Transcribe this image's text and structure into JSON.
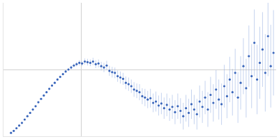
{
  "chart_data": {
    "type": "scatter",
    "x": [
      0.12,
      0.16,
      0.2,
      0.24,
      0.28,
      0.32,
      0.36,
      0.4,
      0.44,
      0.48,
      0.52,
      0.56,
      0.6,
      0.64,
      0.68,
      0.72,
      0.76,
      0.8,
      0.84,
      0.88,
      0.92,
      0.96,
      1.0,
      1.04,
      1.08,
      1.12,
      1.16,
      1.2,
      1.24,
      1.28,
      1.32,
      1.36,
      1.4,
      1.44,
      1.48,
      1.52,
      1.56,
      1.6,
      1.64,
      1.68,
      1.72,
      1.76,
      1.8,
      1.84,
      1.88,
      1.92,
      1.96,
      2.0,
      2.04,
      2.08,
      2.12,
      2.16,
      2.2,
      2.24,
      2.28,
      2.32,
      2.36,
      2.4,
      2.44,
      2.48,
      2.52,
      2.56,
      2.6,
      2.64,
      2.68,
      2.72,
      2.76,
      2.8,
      2.84,
      2.88,
      2.92,
      2.96,
      3.0,
      3.04,
      3.08,
      3.12,
      3.16,
      3.2,
      3.24,
      3.28,
      3.32,
      3.36,
      3.4,
      3.44,
      3.48,
      3.52,
      3.56,
      3.6,
      3.64,
      3.68,
      3.72,
      3.76,
      3.8,
      3.84,
      3.88,
      3.92,
      3.96
    ],
    "values": [
      0.05,
      0.08,
      0.12,
      0.16,
      0.2,
      0.25,
      0.3,
      0.35,
      0.4,
      0.45,
      0.51,
      0.56,
      0.61,
      0.66,
      0.71,
      0.76,
      0.8,
      0.85,
      0.89,
      0.93,
      0.97,
      1.0,
      1.03,
      1.06,
      1.08,
      1.1,
      1.09,
      1.12,
      1.11,
      1.1,
      1.12,
      1.08,
      1.09,
      1.05,
      1.03,
      1.06,
      0.98,
      0.96,
      0.95,
      0.9,
      0.88,
      0.86,
      0.8,
      0.78,
      0.75,
      0.7,
      0.68,
      0.66,
      0.6,
      0.58,
      0.55,
      0.57,
      0.5,
      0.52,
      0.46,
      0.49,
      0.42,
      0.47,
      0.4,
      0.44,
      0.36,
      0.45,
      0.38,
      0.3,
      0.42,
      0.35,
      0.48,
      0.4,
      0.33,
      0.52,
      0.44,
      0.58,
      0.4,
      0.62,
      0.5,
      0.7,
      0.55,
      0.48,
      0.75,
      0.6,
      0.85,
      0.66,
      0.95,
      0.58,
      0.8,
      1.05,
      0.72,
      1.2,
      0.9,
      1.4,
      0.85,
      1.1,
      1.3,
      0.95,
      1.5,
      1.05,
      1.25
    ],
    "errors": [
      0.01,
      0.01,
      0.01,
      0.01,
      0.01,
      0.01,
      0.01,
      0.01,
      0.01,
      0.01,
      0.01,
      0.015,
      0.015,
      0.015,
      0.015,
      0.015,
      0.015,
      0.015,
      0.015,
      0.015,
      0.015,
      0.015,
      0.03,
      0.03,
      0.035,
      0.04,
      0.04,
      0.045,
      0.05,
      0.05,
      0.055,
      0.06,
      0.06,
      0.065,
      0.07,
      0.07,
      0.075,
      0.08,
      0.08,
      0.085,
      0.09,
      0.09,
      0.095,
      0.1,
      0.1,
      0.11,
      0.11,
      0.12,
      0.12,
      0.13,
      0.13,
      0.14,
      0.14,
      0.15,
      0.15,
      0.16,
      0.16,
      0.17,
      0.17,
      0.18,
      0.18,
      0.19,
      0.19,
      0.2,
      0.2,
      0.21,
      0.22,
      0.22,
      0.23,
      0.24,
      0.24,
      0.25,
      0.26,
      0.27,
      0.28,
      0.29,
      0.3,
      0.31,
      0.32,
      0.33,
      0.34,
      0.35,
      0.36,
      0.38,
      0.4,
      0.42,
      0.44,
      0.46,
      0.48,
      0.5,
      0.52,
      0.54,
      0.56,
      0.58,
      0.6,
      0.62,
      0.64
    ],
    "color": "#3a66bb",
    "xlim": [
      0,
      4
    ],
    "xticks": [
      1.15
    ],
    "ylim": [
      0,
      2
    ],
    "yticks": [
      1
    ],
    "grid": true,
    "tick_labels": false,
    "marker": "circle"
  }
}
